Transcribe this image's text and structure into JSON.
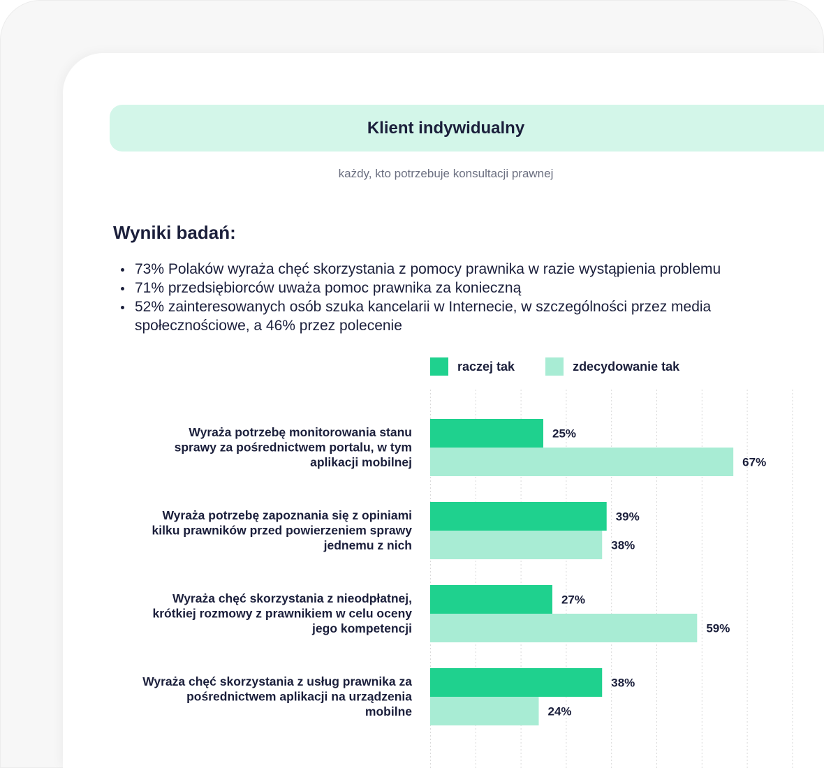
{
  "header": {
    "title": "Klient indywidualny",
    "subtitle": "każdy, kto potrzebuje konsultacji prawnej"
  },
  "results": {
    "heading": "Wyniki badań:",
    "bullets": [
      "73% Polaków wyraża chęć skorzystania z pomocy prawnika w razie wystąpienia problemu",
      "71% przedsiębiorców uważa pomoc prawnika za konieczną",
      "52% zainteresowanych osób szuka kancelarii w Internecie, w szczególności przez media społecznościowe, a 46% przez polecenie"
    ]
  },
  "colors": {
    "raczej_tak": "#1fd18e",
    "zdecydowanie_tak": "#a8ecd4",
    "grid": "#d9d9d9",
    "banner": "#d3f6e9"
  },
  "chart_data": {
    "type": "bar",
    "orientation": "horizontal",
    "legend_position": "top",
    "xlim": [
      0,
      80
    ],
    "grid": true,
    "categories": [
      [
        "Wyraża potrzebę monitorowania stanu",
        "sprawy za pośrednictwem portalu, w tym",
        "aplikacji mobilnej"
      ],
      [
        "Wyraża potrzebę zapoznania się z opiniami",
        "kilku prawników przed powierzeniem sprawy",
        "jednemu z nich"
      ],
      [
        "Wyraża chęć skorzystania z nieodpłatnej,",
        "krótkiej rozmowy z prawnikiem w celu oceny",
        "jego kompetencji"
      ],
      [
        "Wyraża chęć skorzystania z usług prawnika za",
        "pośrednictwem aplikacji na urządzenia",
        "mobilne"
      ]
    ],
    "series": [
      {
        "name": "raczej tak",
        "values": [
          25,
          39,
          27,
          38
        ],
        "labels": [
          "25%",
          "39%",
          "27%",
          "38%"
        ]
      },
      {
        "name": "zdecydowanie tak",
        "values": [
          67,
          38,
          59,
          24
        ],
        "labels": [
          "67%",
          "38%",
          "59%",
          "24%"
        ]
      }
    ]
  }
}
